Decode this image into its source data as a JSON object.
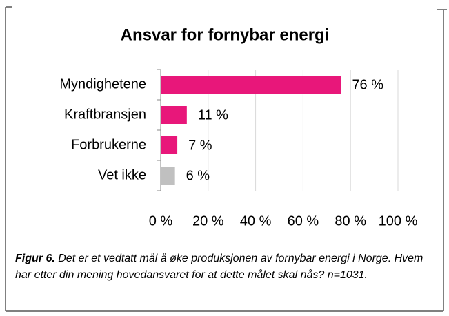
{
  "chart_data": {
    "type": "hbar",
    "title": "Ansvar for fornybar energi",
    "categories": [
      "Myndighetene",
      "Kraftbransjen",
      "Forbrukerne",
      "Vet ikke"
    ],
    "values": [
      76,
      11,
      7,
      6
    ],
    "value_labels": [
      "76 %",
      "11 %",
      "7 %",
      "6 %"
    ],
    "colors": [
      "#e8177a",
      "#e8177a",
      "#e8177a",
      "#c0c0c0"
    ],
    "xlim": [
      0,
      100
    ],
    "xticks": [
      {
        "value": 0,
        "label": "0 %"
      },
      {
        "value": 20,
        "label": "20 %"
      },
      {
        "value": 40,
        "label": "40 %"
      },
      {
        "value": 60,
        "label": "60 %"
      },
      {
        "value": 80,
        "label": "80 %"
      },
      {
        "value": 100,
        "label": "100 %"
      }
    ],
    "grid": true
  },
  "caption": {
    "label": "Figur 6.",
    "text": "Det er et vedtatt mål å øke produksjonen av fornybar energi i Norge. Hvem har etter din mening hovedansvaret for at dette målet skal nås? n=1031."
  }
}
